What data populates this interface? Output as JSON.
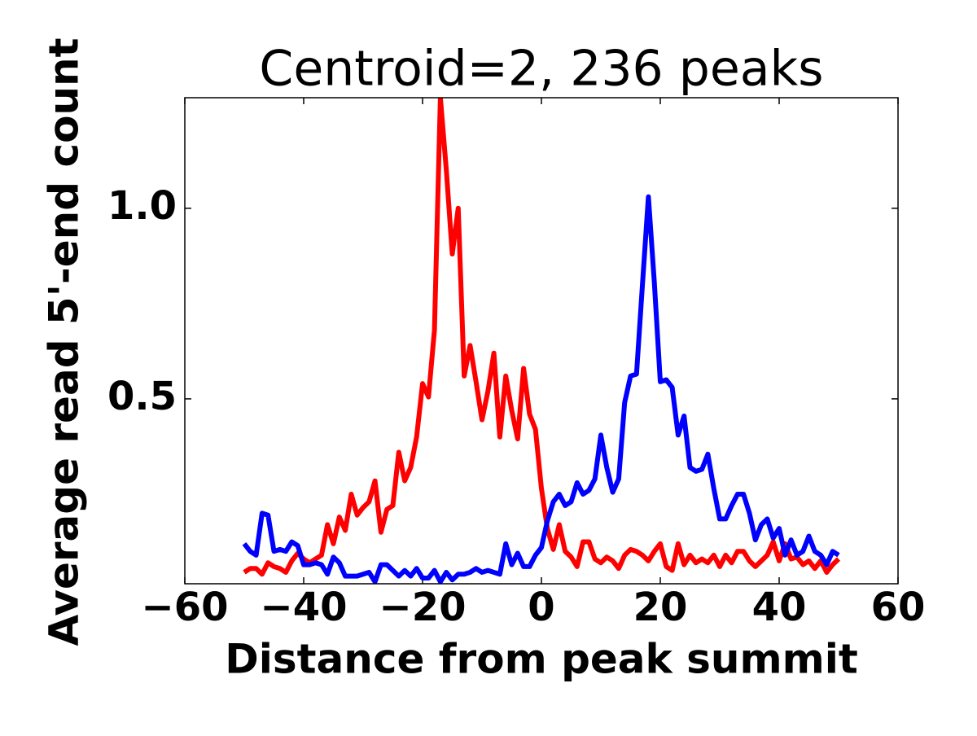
{
  "chart_data": {
    "type": "line",
    "title": "Centroid=2, 236 peaks",
    "x_label": "Distance from peak summit",
    "y_label": "Average read 5'-end count",
    "x": [
      -50,
      -49,
      -48,
      -47,
      -46,
      -45,
      -44,
      -43,
      -42,
      -41,
      -40,
      -39,
      -38,
      -37,
      -36,
      -35,
      -34,
      -33,
      -32,
      -31,
      -30,
      -29,
      -28,
      -27,
      -26,
      -25,
      -24,
      -23,
      -22,
      -21,
      -20,
      -19,
      -18,
      -17,
      -16,
      -15,
      -14,
      -13,
      -12,
      -11,
      -10,
      -9,
      -8,
      -7,
      -6,
      -5,
      -4,
      -3,
      -2,
      -1,
      0,
      1,
      2,
      3,
      4,
      5,
      6,
      7,
      8,
      9,
      10,
      11,
      12,
      13,
      14,
      15,
      16,
      17,
      18,
      19,
      20,
      21,
      22,
      23,
      24,
      25,
      26,
      27,
      28,
      29,
      30,
      31,
      32,
      33,
      34,
      35,
      36,
      37,
      38,
      39,
      40,
      41,
      42,
      43,
      44,
      45,
      46,
      47,
      48,
      49,
      50
    ],
    "series": [
      {
        "color": "#ff0000",
        "values": [
          0.045,
          0.055,
          0.055,
          0.04,
          0.07,
          0.06,
          0.055,
          0.045,
          0.075,
          0.095,
          0.08,
          0.07,
          0.08,
          0.09,
          0.17,
          0.12,
          0.19,
          0.155,
          0.25,
          0.195,
          0.215,
          0.23,
          0.285,
          0.15,
          0.21,
          0.22,
          0.36,
          0.285,
          0.32,
          0.4,
          0.54,
          0.505,
          0.68,
          1.29,
          1.1,
          0.88,
          1.0,
          0.56,
          0.64,
          0.545,
          0.445,
          0.52,
          0.62,
          0.4,
          0.56,
          0.47,
          0.395,
          0.58,
          0.46,
          0.42,
          0.265,
          0.16,
          0.105,
          0.17,
          0.1,
          0.085,
          0.06,
          0.125,
          0.125,
          0.08,
          0.07,
          0.085,
          0.075,
          0.055,
          0.09,
          0.105,
          0.1,
          0.09,
          0.075,
          0.1,
          0.12,
          0.06,
          0.05,
          0.12,
          0.065,
          0.09,
          0.07,
          0.08,
          0.07,
          0.09,
          0.06,
          0.09,
          0.07,
          0.1,
          0.1,
          0.075,
          0.06,
          0.075,
          0.09,
          0.125,
          0.075,
          0.12,
          0.08,
          0.085,
          0.065,
          0.075,
          0.055,
          0.075,
          0.045,
          0.065,
          0.08
        ]
      },
      {
        "color": "#0000ff",
        "values": [
          0.12,
          0.1,
          0.09,
          0.2,
          0.195,
          0.1,
          0.105,
          0.1,
          0.125,
          0.115,
          0.065,
          0.065,
          0.07,
          0.065,
          0.04,
          0.085,
          0.07,
          0.035,
          0.035,
          0.035,
          0.04,
          0.045,
          0.02,
          0.065,
          0.065,
          0.05,
          0.035,
          0.05,
          0.035,
          0.055,
          0.03,
          0.03,
          0.05,
          0.02,
          0.045,
          0.025,
          0.04,
          0.04,
          0.045,
          0.055,
          0.045,
          0.05,
          0.045,
          0.04,
          0.12,
          0.065,
          0.095,
          0.06,
          0.06,
          0.09,
          0.11,
          0.18,
          0.23,
          0.25,
          0.22,
          0.23,
          0.28,
          0.25,
          0.26,
          0.29,
          0.405,
          0.32,
          0.255,
          0.29,
          0.49,
          0.56,
          0.565,
          0.8,
          1.03,
          0.805,
          0.545,
          0.55,
          0.53,
          0.405,
          0.455,
          0.32,
          0.31,
          0.315,
          0.355,
          0.265,
          0.185,
          0.185,
          0.22,
          0.25,
          0.25,
          0.2,
          0.13,
          0.17,
          0.185,
          0.135,
          0.16,
          0.09,
          0.13,
          0.09,
          0.1,
          0.14,
          0.1,
          0.09,
          0.065,
          0.1,
          0.09
        ]
      }
    ],
    "xlim": [
      -60,
      60
    ],
    "xticks": [
      {
        "value": -60,
        "label": "−60"
      },
      {
        "value": -40,
        "label": "−40"
      },
      {
        "value": -20,
        "label": "−20"
      },
      0,
      20,
      40,
      60
    ],
    "ylim": [
      0.015,
      1.29
    ],
    "yticks": [
      0.5,
      {
        "value": 1.0,
        "label": "1.0"
      }
    ],
    "grid": false
  }
}
